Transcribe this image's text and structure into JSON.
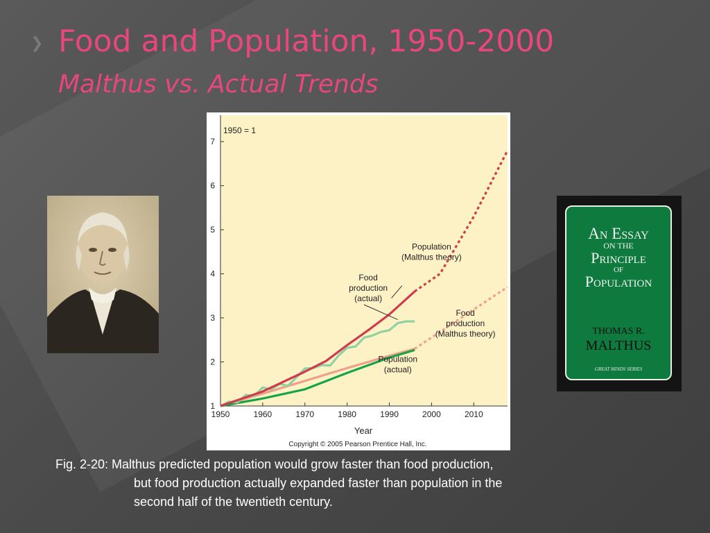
{
  "slide": {
    "title": "Food and Population, 1950-2000",
    "subtitle": "Malthus vs. Actual Trends",
    "caption_line1": "Fig. 2-20: Malthus predicted population would grow faster than food production,",
    "caption_line2": "but food production actually expanded faster than population in the",
    "caption_line3": "second half of the twentieth century."
  },
  "book": {
    "title_line1": "An Essay",
    "title_line2": "on the",
    "title_line3": "Principle",
    "title_line4": "of",
    "title_line5": "Population",
    "author_line1": "THOMAS R.",
    "author_line2": "MALTHUS",
    "series": "GREAT MINDS SERIES"
  },
  "colors": {
    "title": "#e8467e",
    "plot_bg": "#fdf1c6",
    "food_actual": "#d13a4a",
    "food_malthus": "#eea08c",
    "population_actual": "#17a34a",
    "population_malthus_line": "#8fd1a0"
  },
  "chart_data": {
    "type": "line",
    "index_note": "1950 = 1",
    "xlabel": "Year",
    "ylabel": "",
    "xlim": [
      1950,
      2018
    ],
    "ylim": [
      1,
      7.6
    ],
    "x_ticks": [
      1950,
      1960,
      1970,
      1980,
      1990,
      2000,
      2010
    ],
    "y_ticks": [
      1,
      2,
      3,
      4,
      5,
      6,
      7
    ],
    "grid": false,
    "copyright": "Copyright © 2005 Pearson Prentice Hall, Inc.",
    "series": [
      {
        "key": "pop_malthus",
        "name": "Population\n(Malthus theory)",
        "color": "#d13a4a",
        "solid": [
          [
            1950,
            1.0
          ],
          [
            1960,
            1.33
          ],
          [
            1970,
            1.78
          ],
          [
            1975,
            2.02
          ],
          [
            1980,
            2.38
          ],
          [
            1985,
            2.72
          ],
          [
            1990,
            3.08
          ],
          [
            1996,
            3.6
          ]
        ],
        "projected": [
          [
            1996,
            3.6
          ],
          [
            2002,
            4.0
          ],
          [
            2010,
            5.3
          ],
          [
            2018,
            6.8
          ]
        ]
      },
      {
        "key": "food_actual",
        "name": "Food\nproduction\n(actual)",
        "color": "#8fd1a0",
        "solid": [
          [
            1950,
            1.0
          ],
          [
            1952,
            1.1
          ],
          [
            1954,
            1.08
          ],
          [
            1956,
            1.25
          ],
          [
            1958,
            1.23
          ],
          [
            1960,
            1.42
          ],
          [
            1962,
            1.38
          ],
          [
            1964,
            1.5
          ],
          [
            1966,
            1.46
          ],
          [
            1968,
            1.65
          ],
          [
            1970,
            1.85
          ],
          [
            1972,
            1.86
          ],
          [
            1974,
            1.93
          ],
          [
            1976,
            1.92
          ],
          [
            1978,
            2.15
          ],
          [
            1980,
            2.32
          ],
          [
            1982,
            2.35
          ],
          [
            1984,
            2.55
          ],
          [
            1986,
            2.6
          ],
          [
            1988,
            2.68
          ],
          [
            1990,
            2.72
          ],
          [
            1992,
            2.88
          ],
          [
            1994,
            2.92
          ],
          [
            1996,
            2.92
          ]
        ]
      },
      {
        "key": "food_malthus",
        "name": "Food\nproduction\n(Malthus theory)",
        "color": "#eea08c",
        "solid": [
          [
            1950,
            1.0
          ],
          [
            1960,
            1.28
          ],
          [
            1970,
            1.57
          ],
          [
            1980,
            1.86
          ],
          [
            1990,
            2.14
          ],
          [
            1996,
            2.3
          ]
        ],
        "projected": [
          [
            1996,
            2.3
          ],
          [
            2018,
            3.7
          ]
        ]
      },
      {
        "key": "pop_actual",
        "name": "Population\n(actual)",
        "color": "#17a34a",
        "solid": [
          [
            1950,
            1.0
          ],
          [
            1960,
            1.17
          ],
          [
            1970,
            1.38
          ],
          [
            1980,
            1.75
          ],
          [
            1990,
            2.1
          ],
          [
            1996,
            2.27
          ]
        ]
      }
    ]
  }
}
